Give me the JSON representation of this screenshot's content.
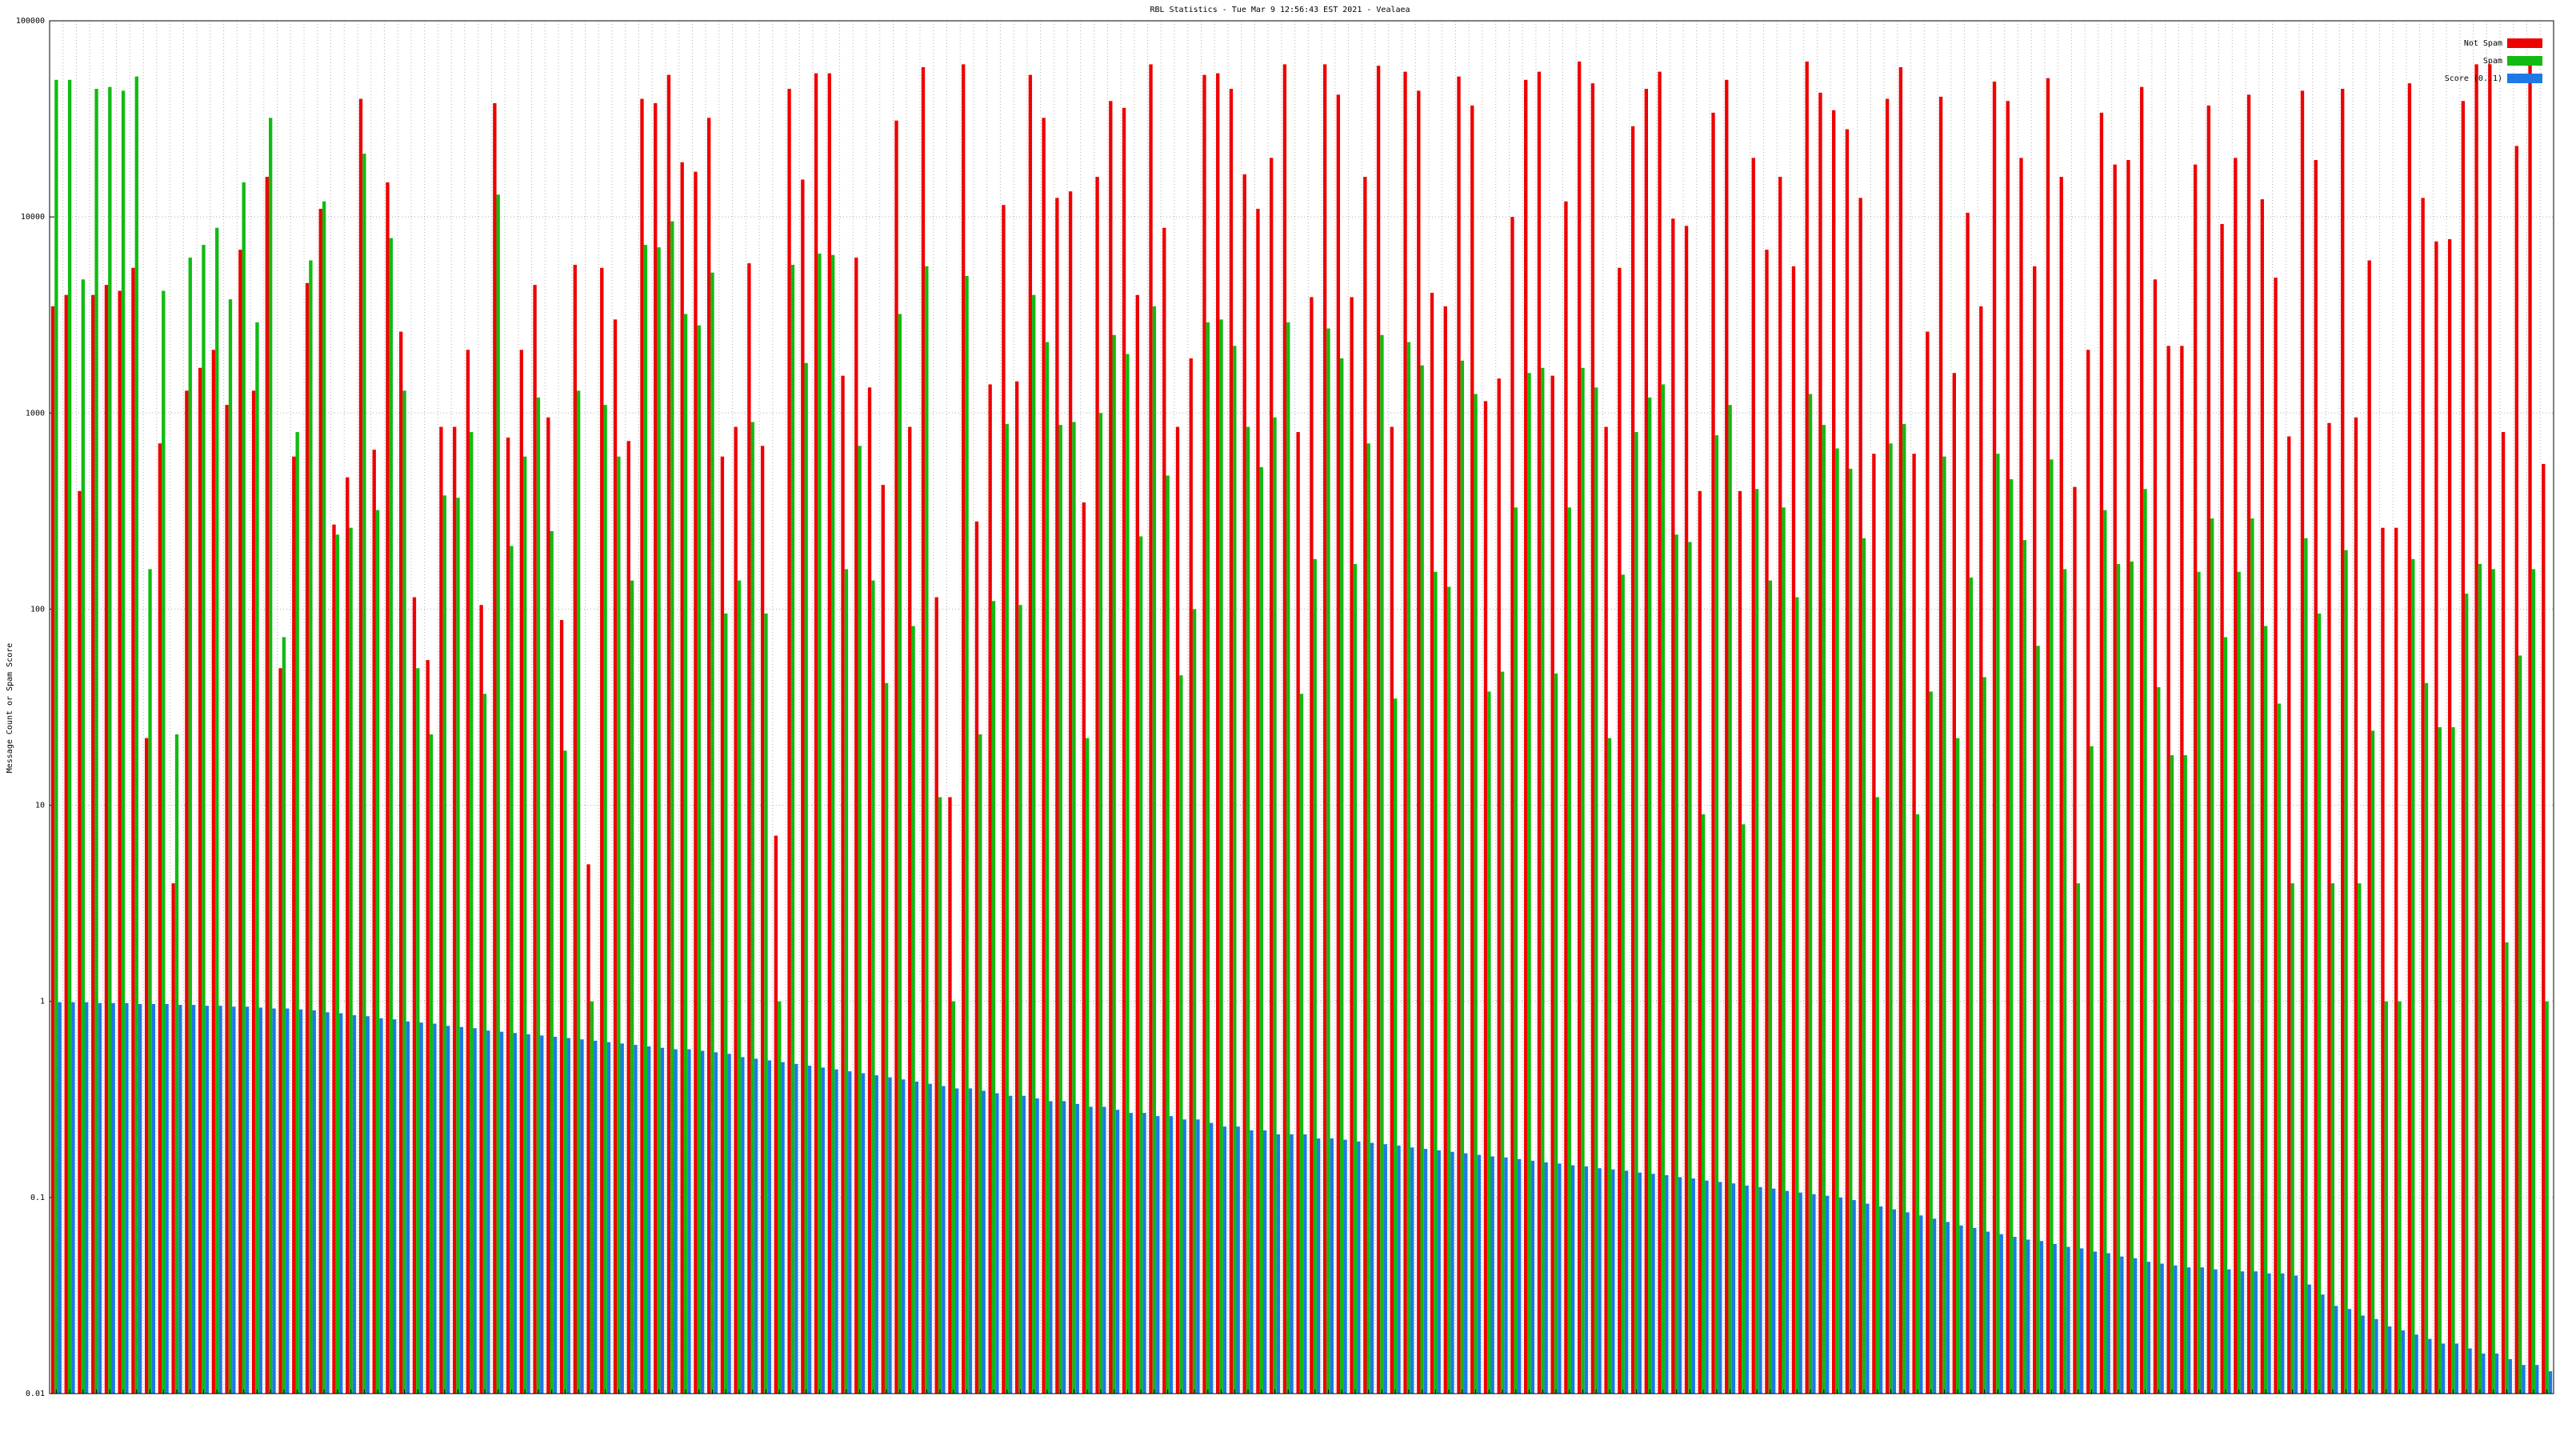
{
  "chart_data": {
    "type": "bar",
    "title": "RBL Statistics - Tue Mar  9 12:56:43 EST 2021 - Vealaea",
    "ylabel": "Message Count or Spam Score",
    "log_scale": true,
    "grid": true,
    "legend": "upper right",
    "ylim": [
      0.01,
      100000
    ],
    "yticks": [
      0.01,
      0.1,
      1,
      10,
      100,
      1000,
      10000,
      100000
    ],
    "categories": [
      null,
      null,
      null,
      null,
      null,
      null,
      null,
      null,
      null,
      null,
      null,
      null,
      null,
      null,
      null,
      null,
      null,
      null,
      null,
      null,
      null,
      null,
      null,
      null,
      null,
      null,
      null,
      null,
      null,
      null,
      null,
      null,
      null,
      null,
      null,
      null,
      null,
      null,
      null,
      null,
      null,
      null,
      null,
      null,
      null,
      null,
      null,
      null,
      null,
      null,
      null,
      null,
      null,
      null,
      null,
      null,
      null,
      null,
      null,
      null,
      null,
      null,
      null,
      null,
      null,
      null,
      null,
      null,
      null,
      null,
      null,
      null,
      null,
      null,
      null,
      null,
      null,
      null,
      null,
      null,
      null,
      null,
      null,
      null,
      null,
      null,
      null,
      null,
      null,
      null,
      null,
      null,
      null,
      null,
      null,
      null,
      null,
      null,
      null,
      null,
      null,
      null,
      null,
      null,
      null,
      null,
      null,
      null,
      null,
      null,
      null,
      null,
      null,
      null,
      null,
      null,
      null,
      null,
      null,
      null,
      null,
      null,
      null,
      null,
      null,
      null,
      null,
      null,
      null,
      null,
      null,
      null,
      null,
      null,
      null,
      null,
      null,
      null,
      null,
      null,
      null,
      null,
      null,
      null,
      null,
      null,
      null,
      null,
      null,
      null,
      null,
      null,
      null,
      null,
      null,
      null,
      null,
      null,
      null,
      null,
      null,
      null,
      null,
      null,
      null,
      null,
      null,
      null,
      null,
      null,
      null,
      null,
      null,
      null,
      null,
      null,
      null,
      null,
      null,
      null,
      null,
      null,
      null,
      null,
      null,
      null,
      null
    ],
    "series": [
      {
        "name": "Not Spam",
        "color": "#ee0000",
        "values": [
          3500,
          4000,
          400,
          4000,
          4500,
          4200,
          5500,
          22,
          700,
          4,
          1300,
          1700,
          2100,
          1100,
          6800,
          1300,
          16000,
          50,
          600,
          4600,
          11000,
          270,
          470,
          40000,
          650,
          15000,
          2600,
          115,
          55,
          850,
          850,
          2100,
          105,
          38000,
          750,
          2100,
          4500,
          950,
          88,
          5700,
          5,
          5500,
          3000,
          720,
          40000,
          38000,
          53000,
          19000,
          17000,
          32000,
          600,
          850,
          5800,
          680,
          7,
          45000,
          15500,
          54000,
          54000,
          1550,
          6200,
          1350,
          430,
          31000,
          850,
          58000,
          115,
          11,
          60000,
          280,
          1400,
          11500,
          1450,
          53000,
          32000,
          12500,
          13500,
          350,
          16000,
          39000,
          36000,
          4000,
          60000,
          8800,
          850,
          1900,
          53000,
          54000,
          45000,
          16500,
          11000,
          20000,
          60000,
          800,
          3900,
          60000,
          42000,
          3900,
          16000,
          59000,
          850,
          55000,
          44000,
          4100,
          3500,
          52000,
          37000,
          1150,
          1500,
          10000,
          50000,
          55000,
          1550,
          12000,
          62000,
          48000,
          850,
          5500,
          29000,
          45000,
          55000,
          9800,
          9000,
          400,
          34000,
          50000,
          400,
          20000,
          6800,
          16000,
          5600,
          62000,
          43000,
          35000,
          28000,
          12500,
          620,
          40000,
          58000,
          620,
          2600,
          41000,
          1600,
          10500,
          3500,
          49000,
          39000,
          20000,
          5600,
          51000,
          16000,
          420,
          2100,
          34000,
          18500,
          19500,
          46000,
          4800,
          2200,
          2200,
          18500,
          37000,
          9200,
          20000,
          42000,
          12300,
          4900,
          760,
          44000,
          19500,
          890,
          45000,
          950,
          6000,
          260,
          260,
          48000,
          12500,
          7500,
          7700,
          39000,
          60000,
          60000,
          800,
          23000,
          60000,
          550
        ]
      },
      {
        "name": "Spam",
        "color": "#11bb11",
        "values": [
          50000,
          50000,
          4800,
          45000,
          46000,
          44000,
          52000,
          160,
          4200,
          23,
          6200,
          7200,
          8800,
          3800,
          15000,
          2900,
          32000,
          72,
          800,
          6000,
          12000,
          240,
          260,
          21000,
          320,
          7800,
          1300,
          50,
          23,
          380,
          370,
          800,
          37,
          13000,
          210,
          600,
          1200,
          250,
          19,
          1300,
          1,
          1100,
          600,
          140,
          7200,
          7000,
          9500,
          3200,
          2800,
          5200,
          95,
          140,
          900,
          95,
          1,
          5700,
          1800,
          6500,
          6400,
          160,
          680,
          140,
          42,
          3200,
          82,
          5600,
          11,
          1,
          5000,
          23,
          110,
          880,
          105,
          4000,
          2300,
          870,
          900,
          22,
          1000,
          2500,
          2000,
          235,
          3500,
          480,
          46,
          100,
          2900,
          3000,
          2200,
          850,
          530,
          950,
          2900,
          37,
          180,
          2700,
          1900,
          170,
          700,
          2500,
          35,
          2300,
          1750,
          155,
          130,
          1850,
          1250,
          38,
          48,
          330,
          1600,
          1700,
          47,
          330,
          1700,
          1350,
          22,
          150,
          800,
          1200,
          1400,
          240,
          220,
          9,
          770,
          1100,
          8,
          410,
          140,
          330,
          115,
          1250,
          870,
          660,
          520,
          230,
          11,
          700,
          880,
          9,
          38,
          600,
          22,
          145,
          45,
          620,
          460,
          225,
          65,
          580,
          160,
          4,
          20,
          320,
          170,
          175,
          410,
          40,
          18,
          18,
          155,
          290,
          72,
          155,
          290,
          82,
          33,
          4,
          230,
          95,
          4,
          200,
          4,
          24,
          1,
          1,
          180,
          42,
          25,
          25,
          120,
          170,
          160,
          2,
          58,
          160,
          1
        ]
      },
      {
        "name": "Score (0..1)",
        "color": "#1e78e6",
        "values": [
          0.99,
          0.99,
          0.99,
          0.98,
          0.98,
          0.98,
          0.97,
          0.97,
          0.97,
          0.96,
          0.96,
          0.95,
          0.95,
          0.94,
          0.94,
          0.93,
          0.92,
          0.92,
          0.91,
          0.9,
          0.88,
          0.87,
          0.85,
          0.84,
          0.82,
          0.81,
          0.79,
          0.78,
          0.77,
          0.75,
          0.74,
          0.73,
          0.71,
          0.7,
          0.69,
          0.68,
          0.67,
          0.66,
          0.65,
          0.64,
          0.63,
          0.62,
          0.61,
          0.6,
          0.59,
          0.58,
          0.57,
          0.57,
          0.56,
          0.55,
          0.54,
          0.52,
          0.51,
          0.5,
          0.49,
          0.48,
          0.47,
          0.46,
          0.45,
          0.44,
          0.43,
          0.42,
          0.41,
          0.4,
          0.39,
          0.38,
          0.37,
          0.36,
          0.36,
          0.35,
          0.34,
          0.33,
          0.33,
          0.32,
          0.31,
          0.31,
          0.3,
          0.29,
          0.29,
          0.28,
          0.27,
          0.27,
          0.26,
          0.26,
          0.25,
          0.25,
          0.24,
          0.23,
          0.23,
          0.22,
          0.22,
          0.21,
          0.21,
          0.21,
          0.2,
          0.2,
          0.197,
          0.193,
          0.19,
          0.187,
          0.184,
          0.18,
          0.177,
          0.174,
          0.171,
          0.168,
          0.165,
          0.162,
          0.16,
          0.157,
          0.154,
          0.151,
          0.149,
          0.146,
          0.144,
          0.141,
          0.139,
          0.137,
          0.134,
          0.132,
          0.13,
          0.127,
          0.125,
          0.122,
          0.12,
          0.118,
          0.115,
          0.113,
          0.111,
          0.108,
          0.106,
          0.104,
          0.102,
          0.1,
          0.097,
          0.093,
          0.09,
          0.087,
          0.084,
          0.081,
          0.078,
          0.075,
          0.072,
          0.07,
          0.067,
          0.065,
          0.063,
          0.061,
          0.06,
          0.058,
          0.056,
          0.055,
          0.053,
          0.052,
          0.05,
          0.049,
          0.047,
          0.046,
          0.045,
          0.044,
          0.044,
          0.043,
          0.043,
          0.042,
          0.042,
          0.041,
          0.041,
          0.04,
          0.036,
          0.032,
          0.028,
          0.027,
          0.025,
          0.024,
          0.022,
          0.021,
          0.02,
          0.019,
          0.018,
          0.018,
          0.017,
          0.016,
          0.016,
          0.015,
          0.014,
          0.014,
          0.013
        ]
      }
    ]
  }
}
